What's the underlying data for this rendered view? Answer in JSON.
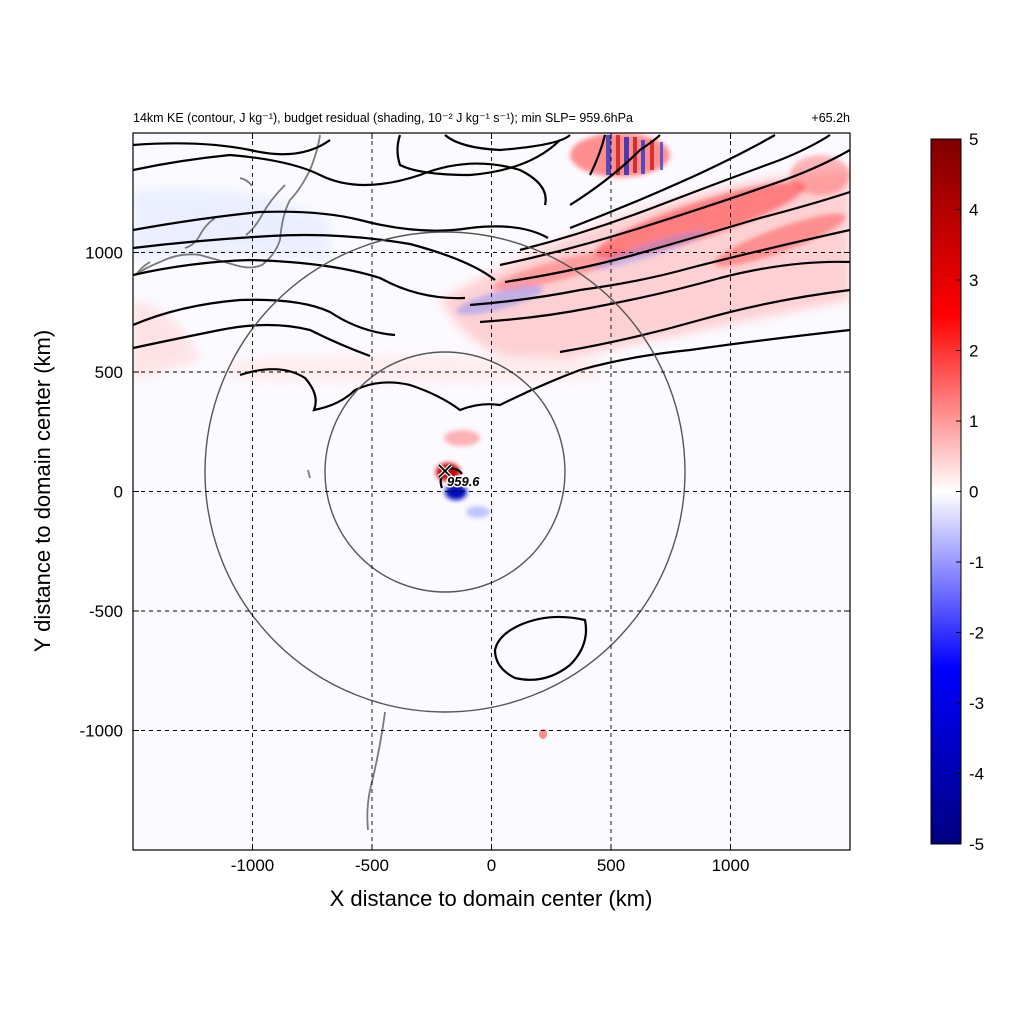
{
  "chart_data": {
    "type": "heatmap",
    "title": "14km KE (contour, J kg⁻¹), budget residual (shading, 10⁻² J kg⁻¹ s⁻¹); min SLP= 959.6hPa",
    "title_right": "+65.2h",
    "xlabel": "X distance to domain center (km)",
    "ylabel": "Y distance to domain center (km)",
    "xlim": [
      -1500,
      1500
    ],
    "ylim": [
      -1500,
      1500
    ],
    "xticks": [
      -1000,
      -500,
      0,
      500,
      1000
    ],
    "yticks": [
      1000,
      500,
      0,
      -500,
      -1000
    ],
    "grid": true,
    "colorbar": {
      "range": [
        -5,
        5
      ],
      "ticks": [
        5,
        4,
        3,
        2,
        1,
        0,
        -1,
        -2,
        -3,
        -4,
        -5
      ],
      "colors": [
        "#00007f",
        "#0000ff",
        "#ffffff",
        "#ff0000",
        "#7f0000"
      ]
    },
    "storm_center": {
      "x": -200,
      "y": 80,
      "label": "959.6"
    },
    "range_circles": [
      {
        "center_x": -200,
        "center_y": 80,
        "radius_km": 500
      },
      {
        "center_x": -200,
        "center_y": 80,
        "radius_km": 1000
      }
    ]
  }
}
